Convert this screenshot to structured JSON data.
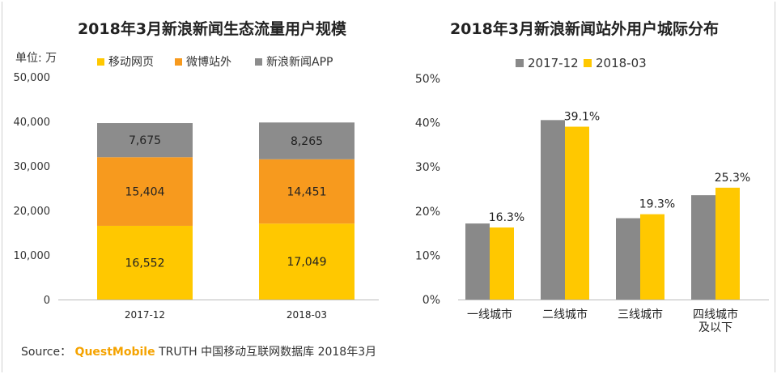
{
  "colors": {
    "mobile_web": "#ffc800",
    "weibo": "#f79a1e",
    "app": "#8c8c8c",
    "grey_series": "#898989",
    "yellow_series": "#ffc800",
    "brand": "#f5a300"
  },
  "chart_data": [
    {
      "type": "bar",
      "stacked": true,
      "title": "2018年3月新浪新闻生态流量用户规模",
      "unit_label": "单位: 万",
      "categories": [
        "2017-12",
        "2018-03"
      ],
      "series": [
        {
          "name": "移动网页",
          "values": [
            16552,
            17049
          ],
          "labels": [
            "16,552",
            "17,049"
          ]
        },
        {
          "name": "微博站外",
          "values": [
            15404,
            14451
          ],
          "labels": [
            "15,404",
            "14,451"
          ]
        },
        {
          "name": "新浪新闻APP",
          "values": [
            7675,
            8265
          ],
          "labels": [
            "7,675",
            "8,265"
          ]
        }
      ],
      "ylim": [
        0,
        50000
      ],
      "yticks": [
        0,
        10000,
        20000,
        30000,
        40000,
        50000
      ],
      "ytick_labels": [
        "0",
        "10,000",
        "20,000",
        "30,000",
        "40,000",
        "50,000"
      ],
      "legend_position": "top"
    },
    {
      "type": "bar",
      "stacked": false,
      "title": "2018年3月新浪新闻站外用户城际分布",
      "categories": [
        "一线城市",
        "二线城市",
        "三线城市",
        "四线城市\n及以下"
      ],
      "category_lines": [
        [
          "一线城市"
        ],
        [
          "二线城市"
        ],
        [
          "三线城市"
        ],
        [
          "四线城市",
          "及以下"
        ]
      ],
      "series": [
        {
          "name": "2017-12",
          "values": [
            17.2,
            40.6,
            18.4,
            23.6
          ]
        },
        {
          "name": "2018-03",
          "values": [
            16.3,
            39.1,
            19.3,
            25.3
          ],
          "labels": [
            "16.3%",
            "39.1%",
            "19.3%",
            "25.3%"
          ]
        }
      ],
      "ylim": [
        0,
        50
      ],
      "yticks": [
        0,
        10,
        20,
        30,
        40,
        50
      ],
      "ytick_labels": [
        "0%",
        "10%",
        "20%",
        "30%",
        "40%",
        "50%"
      ],
      "legend_position": "top"
    }
  ],
  "source": {
    "prefix": "Source：",
    "brand": "QuestMobile",
    "rest": "TRUTH 中国移动互联网数据库 2018年3月"
  }
}
